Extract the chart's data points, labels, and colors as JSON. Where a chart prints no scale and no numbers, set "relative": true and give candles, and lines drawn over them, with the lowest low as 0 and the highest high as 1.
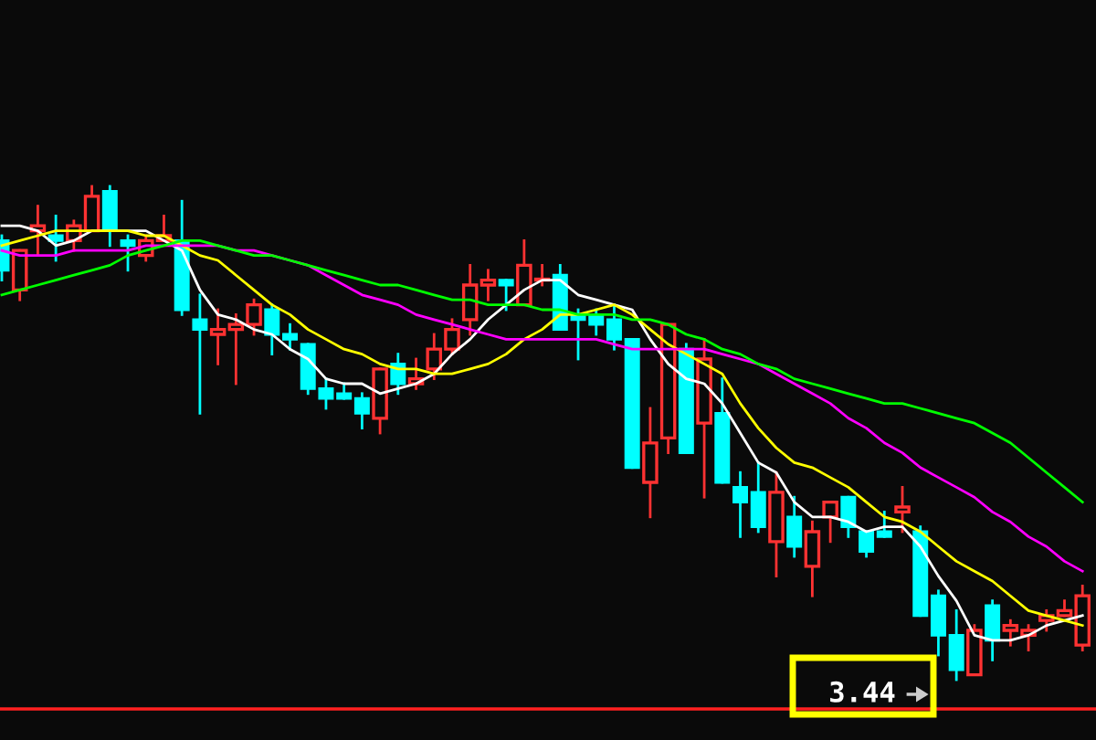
{
  "chart_data": {
    "type": "candlestick",
    "relative": true,
    "categories": [
      null,
      null,
      null,
      null,
      null,
      null,
      null,
      null,
      null,
      null,
      null,
      null,
      null,
      null,
      null,
      null,
      null,
      null,
      null,
      null,
      null,
      null,
      null,
      null,
      null,
      null,
      null,
      null,
      null,
      null,
      null,
      null,
      null,
      null,
      null,
      null,
      null,
      null,
      null,
      null,
      null,
      null,
      null,
      null,
      null,
      null,
      null,
      null,
      null,
      null,
      null,
      null,
      null,
      null,
      null,
      null,
      null,
      null,
      null,
      null,
      null
    ],
    "ohlc": [
      [
        0.89,
        0.9,
        0.81,
        0.83
      ],
      [
        0.79,
        0.87,
        0.77,
        0.87
      ],
      [
        0.91,
        0.96,
        0.86,
        0.92
      ],
      [
        0.9,
        0.94,
        0.85,
        0.89
      ],
      [
        0.89,
        0.93,
        0.87,
        0.92
      ],
      [
        0.91,
        1.0,
        0.91,
        0.98
      ],
      [
        0.99,
        1.0,
        0.88,
        0.91
      ],
      [
        0.89,
        0.9,
        0.83,
        0.88
      ],
      [
        0.86,
        0.9,
        0.85,
        0.89
      ],
      [
        0.89,
        0.94,
        0.89,
        0.9
      ],
      [
        0.89,
        0.97,
        0.74,
        0.75
      ],
      [
        0.73,
        0.78,
        0.54,
        0.71
      ],
      [
        0.7,
        0.75,
        0.64,
        0.71
      ],
      [
        0.71,
        0.74,
        0.6,
        0.72
      ],
      [
        0.72,
        0.77,
        0.7,
        0.76
      ],
      [
        0.75,
        0.76,
        0.66,
        0.7
      ],
      [
        0.7,
        0.72,
        0.67,
        0.69
      ],
      [
        0.68,
        0.68,
        0.58,
        0.59
      ],
      [
        0.59,
        0.61,
        0.55,
        0.57
      ],
      [
        0.58,
        0.6,
        0.57,
        0.57
      ],
      [
        0.57,
        0.58,
        0.51,
        0.54
      ],
      [
        0.53,
        0.63,
        0.5,
        0.63
      ],
      [
        0.64,
        0.66,
        0.58,
        0.6
      ],
      [
        0.6,
        0.65,
        0.59,
        0.61
      ],
      [
        0.63,
        0.7,
        0.61,
        0.67
      ],
      [
        0.67,
        0.73,
        0.66,
        0.71
      ],
      [
        0.73,
        0.84,
        0.7,
        0.8
      ],
      [
        0.8,
        0.83,
        0.77,
        0.81
      ],
      [
        0.81,
        0.81,
        0.75,
        0.8
      ],
      [
        0.76,
        0.89,
        0.76,
        0.84
      ],
      [
        0.81,
        0.84,
        0.8,
        0.81
      ],
      [
        0.82,
        0.84,
        0.71,
        0.71
      ],
      [
        0.74,
        0.75,
        0.65,
        0.73
      ],
      [
        0.74,
        0.75,
        0.7,
        0.72
      ],
      [
        0.73,
        0.76,
        0.67,
        0.69
      ],
      [
        0.69,
        0.69,
        0.43,
        0.43
      ],
      [
        0.4,
        0.55,
        0.33,
        0.48
      ],
      [
        0.49,
        0.72,
        0.46,
        0.72
      ],
      [
        0.67,
        0.68,
        0.46,
        0.46
      ],
      [
        0.52,
        0.69,
        0.37,
        0.65
      ],
      [
        0.54,
        0.61,
        0.4,
        0.4
      ],
      [
        0.39,
        0.42,
        0.29,
        0.36
      ],
      [
        0.38,
        0.44,
        0.3,
        0.31
      ],
      [
        0.28,
        0.42,
        0.21,
        0.38
      ],
      [
        0.33,
        0.37,
        0.25,
        0.27
      ],
      [
        0.23,
        0.32,
        0.17,
        0.3
      ],
      [
        0.33,
        0.36,
        0.28,
        0.36
      ],
      [
        0.37,
        0.37,
        0.29,
        0.31
      ],
      [
        0.3,
        0.3,
        0.25,
        0.26
      ],
      [
        0.3,
        0.34,
        0.29,
        0.29
      ],
      [
        0.34,
        0.39,
        0.3,
        0.35
      ],
      [
        0.3,
        0.31,
        0.13,
        0.13
      ],
      [
        0.17,
        0.18,
        0.05,
        0.09
      ],
      [
        0.09,
        0.14,
        0.0,
        0.02
      ],
      [
        0.01,
        0.11,
        0.01,
        0.1
      ],
      [
        0.15,
        0.16,
        0.04,
        0.08
      ],
      [
        0.1,
        0.12,
        0.07,
        0.11
      ],
      [
        0.09,
        0.11,
        0.06,
        0.1
      ],
      [
        0.12,
        0.14,
        0.1,
        0.13
      ],
      [
        0.13,
        0.16,
        0.13,
        0.14
      ],
      [
        0.07,
        0.19,
        0.06,
        0.17
      ]
    ],
    "colors": [
      "#00ffff",
      "#ff3232",
      "#ff3232",
      "#00ffff",
      "#ff3232",
      "#ff3232",
      "#00ffff",
      "#00ffff",
      "#ff3232",
      "#ff3232",
      "#00ffff",
      "#00ffff",
      "#ff3232",
      "#ff3232",
      "#ff3232",
      "#00ffff",
      "#00ffff",
      "#00ffff",
      "#00ffff",
      "#00ffff",
      "#00ffff",
      "#ff3232",
      "#00ffff",
      "#ff3232",
      "#ff3232",
      "#ff3232",
      "#ff3232",
      "#ff3232",
      "#00ffff",
      "#ff3232",
      "#ff3232",
      "#00ffff",
      "#00ffff",
      "#00ffff",
      "#00ffff",
      "#00ffff",
      "#ff3232",
      "#ff3232",
      "#00ffff",
      "#ff3232",
      "#00ffff",
      "#00ffff",
      "#00ffff",
      "#ff3232",
      "#00ffff",
      "#ff3232",
      "#ff3232",
      "#00ffff",
      "#00ffff",
      "#00ffff",
      "#ff3232",
      "#00ffff",
      "#00ffff",
      "#00ffff",
      "#ff3232",
      "#00ffff",
      "#ff3232",
      "#ff3232",
      "#ff3232",
      "#ff3232",
      "#ff3232"
    ],
    "series": [
      {
        "type": "line",
        "color": "#ffffff",
        "values": [
          0.92,
          0.92,
          0.91,
          0.88,
          0.89,
          0.91,
          0.91,
          0.91,
          0.91,
          0.89,
          0.87,
          0.79,
          0.74,
          0.73,
          0.71,
          0.7,
          0.67,
          0.65,
          0.61,
          0.6,
          0.6,
          0.58,
          0.59,
          0.6,
          0.62,
          0.66,
          0.69,
          0.73,
          0.76,
          0.79,
          0.81,
          0.81,
          0.78,
          0.77,
          0.76,
          0.75,
          0.69,
          0.64,
          0.61,
          0.6,
          0.56,
          0.5,
          0.44,
          0.42,
          0.36,
          0.33,
          0.33,
          0.32,
          0.3,
          0.31,
          0.31,
          0.27,
          0.21,
          0.16,
          0.09,
          0.08,
          0.08,
          0.09,
          0.11,
          0.12,
          0.13
        ]
      },
      {
        "type": "line",
        "color": "#ffff00",
        "values": [
          0.88,
          0.89,
          0.9,
          0.91,
          0.91,
          0.91,
          0.91,
          0.91,
          0.9,
          0.9,
          0.88,
          0.86,
          0.85,
          0.82,
          0.79,
          0.76,
          0.74,
          0.71,
          0.69,
          0.67,
          0.66,
          0.64,
          0.63,
          0.63,
          0.62,
          0.62,
          0.63,
          0.64,
          0.66,
          0.69,
          0.71,
          0.74,
          0.74,
          0.75,
          0.76,
          0.74,
          0.71,
          0.68,
          0.66,
          0.64,
          0.62,
          0.56,
          0.51,
          0.47,
          0.44,
          0.43,
          0.41,
          0.39,
          0.36,
          0.33,
          0.32,
          0.3,
          0.27,
          0.24,
          0.22,
          0.2,
          0.17,
          0.14,
          0.13,
          0.12,
          0.11
        ]
      },
      {
        "type": "line",
        "color": "#ff00ff",
        "values": [
          0.87,
          0.86,
          0.86,
          0.86,
          0.87,
          0.87,
          0.87,
          0.87,
          0.88,
          0.88,
          0.88,
          0.88,
          0.88,
          0.87,
          0.87,
          0.86,
          0.85,
          0.84,
          0.82,
          0.8,
          0.78,
          0.77,
          0.76,
          0.74,
          0.73,
          0.72,
          0.71,
          0.7,
          0.69,
          0.69,
          0.69,
          0.69,
          0.69,
          0.69,
          0.68,
          0.67,
          0.67,
          0.67,
          0.67,
          0.67,
          0.66,
          0.65,
          0.64,
          0.62,
          0.6,
          0.58,
          0.56,
          0.53,
          0.51,
          0.48,
          0.46,
          0.43,
          0.41,
          0.39,
          0.37,
          0.34,
          0.32,
          0.29,
          0.27,
          0.24,
          0.22
        ]
      },
      {
        "type": "line",
        "color": "#00ff00",
        "values": [
          0.78,
          0.79,
          0.8,
          0.81,
          0.82,
          0.83,
          0.84,
          0.86,
          0.87,
          0.88,
          0.89,
          0.89,
          0.88,
          0.87,
          0.86,
          0.86,
          0.85,
          0.84,
          0.83,
          0.82,
          0.81,
          0.8,
          0.8,
          0.79,
          0.78,
          0.77,
          0.77,
          0.76,
          0.76,
          0.76,
          0.75,
          0.75,
          0.74,
          0.74,
          0.74,
          0.73,
          0.73,
          0.72,
          0.7,
          0.69,
          0.67,
          0.66,
          0.64,
          0.63,
          0.61,
          0.6,
          0.59,
          0.58,
          0.57,
          0.56,
          0.56,
          0.55,
          0.54,
          0.53,
          0.52,
          0.5,
          0.48,
          0.45,
          0.42,
          0.39,
          0.36
        ]
      }
    ],
    "annotations": [
      "3.44"
    ],
    "marker": "none",
    "line_style": "solid",
    "legend": false
  }
}
